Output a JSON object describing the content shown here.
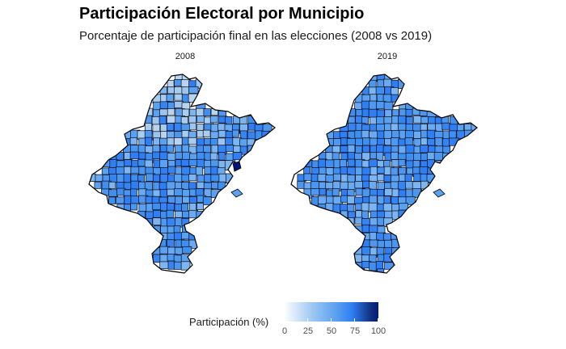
{
  "title": "Participación Electoral por Municipio",
  "subtitle": "Porcentaje de participación final en las elecciones (2008 vs 2019)",
  "panels": [
    {
      "label": "2008",
      "highlight_color": "#00127a"
    },
    {
      "label": "2019",
      "highlight_color": null
    }
  ],
  "legend": {
    "title": "Participación (%)",
    "ticks": [
      "0",
      "25",
      "50",
      "75",
      "100"
    ],
    "tick_values": [
      0,
      25,
      50,
      75,
      100
    ],
    "colors": [
      "#ffffff",
      "#9ec8f2",
      "#5ca0ee",
      "#2f7ff3",
      "#001d7a"
    ]
  },
  "palette": [
    "#3f8ff0",
    "#4b96ee",
    "#5aa2ef",
    "#3584f2",
    "#6aaaf0",
    "#2f7ef3",
    "#4e98ef",
    "#7cb5ef"
  ],
  "palette_light": [
    "#a9cdee",
    "#b9d4ee",
    "#9ec5ee"
  ]
}
